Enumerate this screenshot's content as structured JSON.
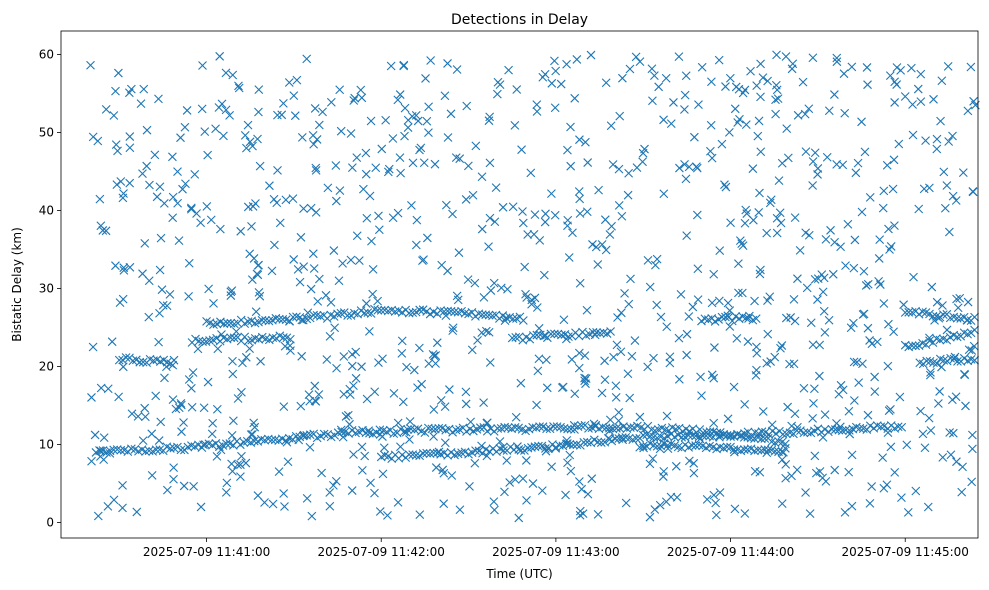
{
  "chart_data": {
    "type": "scatter",
    "title": "Detections in Delay",
    "xlabel": "Time (UTC)",
    "ylabel": "Bistatic Delay (km)",
    "marker": "x",
    "marker_color": "#1f77b4",
    "grid": false,
    "legend": "none",
    "xlim": [
      "2025-07-09 11:40:10",
      "2025-07-09 11:45:25"
    ],
    "ylim": [
      -2,
      63
    ],
    "xticks": [
      "2025-07-09 11:41:00",
      "2025-07-09 11:42:00",
      "2025-07-09 11:43:00",
      "2025-07-09 11:44:00",
      "2025-07-09 11:45:00"
    ],
    "yticks": [
      0,
      10,
      20,
      30,
      40,
      50,
      60
    ],
    "tracks": [
      {
        "x": [
          "2025-07-09 11:40:22",
          "2025-07-09 11:40:50",
          "2025-07-09 11:41:20",
          "2025-07-09 11:41:50",
          "2025-07-09 11:42:15",
          "2025-07-09 11:42:40",
          "2025-07-09 11:43:10",
          "2025-07-09 11:43:40",
          "2025-07-09 11:44:00",
          "2025-07-09 11:44:20"
        ],
        "y": [
          9.0,
          9.5,
          10.5,
          11.5,
          11.8,
          11.9,
          12.2,
          12.0,
          11.2,
          10.2
        ]
      },
      {
        "x": [
          "2025-07-09 11:42:00",
          "2025-07-09 11:42:30",
          "2025-07-09 11:43:00",
          "2025-07-09 11:43:30",
          "2025-07-09 11:44:00",
          "2025-07-09 11:44:30",
          "2025-07-09 11:45:00"
        ],
        "y": [
          8.3,
          9.0,
          9.8,
          11.0,
          11.2,
          11.8,
          12.4
        ]
      },
      {
        "x": [
          "2025-07-09 11:43:30",
          "2025-07-09 11:44:00",
          "2025-07-09 11:44:20"
        ],
        "y": [
          10.0,
          9.4,
          9.2
        ]
      },
      {
        "x": [
          "2025-07-09 11:41:00",
          "2025-07-09 11:41:25",
          "2025-07-09 11:41:45",
          "2025-07-09 11:42:00",
          "2025-07-09 11:42:30",
          "2025-07-09 11:42:50"
        ],
        "y": [
          25.5,
          26.0,
          26.5,
          27.2,
          26.8,
          26.0
        ]
      },
      {
        "x": [
          "2025-07-09 11:40:55",
          "2025-07-09 11:41:30"
        ],
        "y": [
          23.2,
          23.8
        ]
      },
      {
        "x": [
          "2025-07-09 11:40:30",
          "2025-07-09 11:40:50"
        ],
        "y": [
          21.0,
          20.5
        ]
      },
      {
        "x": [
          "2025-07-09 11:42:45",
          "2025-07-09 11:43:20"
        ],
        "y": [
          23.5,
          24.5
        ]
      },
      {
        "x": [
          "2025-07-09 11:43:50",
          "2025-07-09 11:44:10"
        ],
        "y": [
          26.0,
          26.2
        ]
      },
      {
        "x": [
          "2025-07-09 11:45:00",
          "2025-07-09 11:45:25"
        ],
        "y": [
          27.0,
          26.0
        ]
      },
      {
        "x": [
          "2025-07-09 11:45:00",
          "2025-07-09 11:45:25"
        ],
        "y": [
          22.5,
          24.5
        ]
      },
      {
        "x": [
          "2025-07-09 11:45:05",
          "2025-07-09 11:45:25"
        ],
        "y": [
          20.5,
          21.0
        ]
      }
    ]
  }
}
